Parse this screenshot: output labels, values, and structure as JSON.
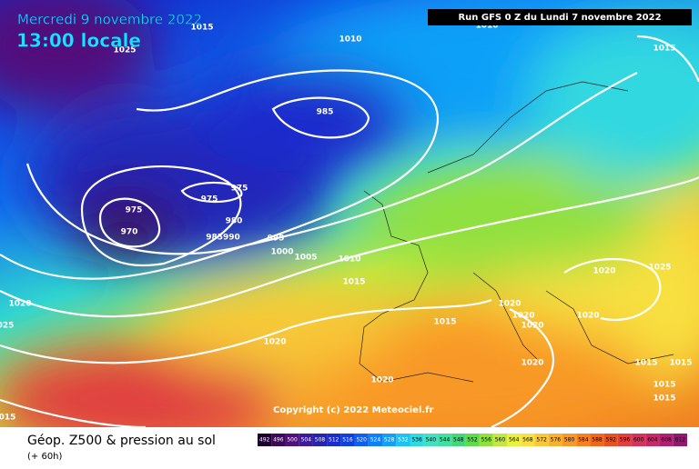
{
  "header": {
    "date": "Mercredi 9 novembre 2022",
    "time": "13:00 locale",
    "run": "Run GFS 0 Z du Lundi 7 novembre 2022"
  },
  "map": {
    "isobar_labels": [
      "1015",
      "1010",
      "1010",
      "1015",
      "1025",
      "985",
      "975",
      "975",
      "980",
      "975",
      "970",
      "985990",
      "995",
      "1000",
      "1005",
      "1010",
      "1015",
      "1020",
      "1025",
      "1020",
      "025",
      "1020",
      "1020",
      "1020",
      "1020",
      "1015",
      "1020",
      "1020",
      "1020",
      "1015",
      "1015",
      "1015",
      "1015",
      "015"
    ],
    "copyright": "Copyright (c) 2022 Meteociel.fr"
  },
  "legend": {
    "title": "Géop. Z500 & pression au sol",
    "lead": "(+ 60h)",
    "values": [
      492,
      496,
      500,
      504,
      508,
      512,
      516,
      520,
      524,
      528,
      532,
      536,
      540,
      544,
      548,
      552,
      556,
      560,
      564,
      568,
      572,
      576,
      580,
      584,
      588,
      592,
      596,
      600,
      604,
      608,
      612
    ],
    "colors": [
      "#1c0030",
      "#3b0a5a",
      "#52107a",
      "#3c1c9a",
      "#2622b2",
      "#1a2ccc",
      "#1040e0",
      "#1060f0",
      "#1080f8",
      "#10a0f8",
      "#20c0f0",
      "#30d8e0",
      "#40e0c0",
      "#40e0a0",
      "#40d878",
      "#60d850",
      "#90e040",
      "#c0e840",
      "#e8f040",
      "#f8e040",
      "#f8c838",
      "#f8b030",
      "#f89828",
      "#f88020",
      "#f06818",
      "#e85020",
      "#e04040",
      "#d83058",
      "#c82868",
      "#b02070",
      "#901870"
    ]
  }
}
